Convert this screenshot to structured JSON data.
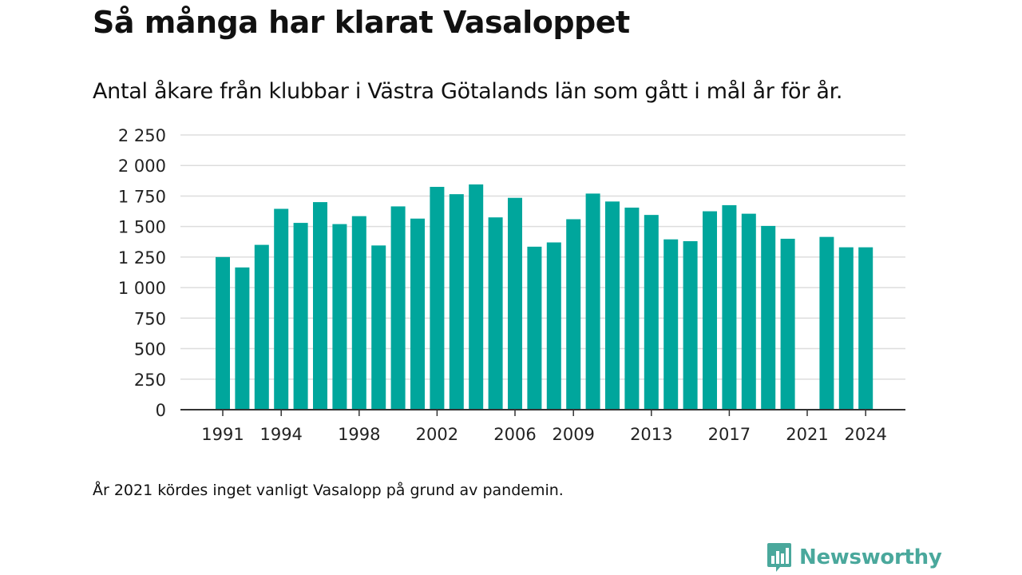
{
  "title": "Så många har klarat Vasaloppet",
  "subtitle": "Antal åkare från klubbar i Västra Götalands län som gått i mål år för år.",
  "note": "År 2021 kördes inget vanligt Vasalopp på grund av pandemin.",
  "brand": {
    "name": "Newsworthy",
    "icon": "newsworthy-logo-icon",
    "color": "#4aa89c"
  },
  "chart_data": {
    "type": "bar",
    "bar_color": "#00a69c",
    "grid": true,
    "ylim": [
      0,
      2250
    ],
    "y_ticks": [
      0,
      250,
      500,
      750,
      1000,
      1250,
      1500,
      1750,
      2000,
      2250
    ],
    "y_tick_labels": [
      "0",
      "250",
      "500",
      "750",
      "1 000",
      "1 250",
      "1 500",
      "1 750",
      "2 000",
      "2 250"
    ],
    "x_tick_labels": [
      "1991",
      "1994",
      "1998",
      "2002",
      "2006",
      "2009",
      "2013",
      "2017",
      "2021",
      "2024"
    ],
    "categories": [
      "1991",
      "1992",
      "1993",
      "1994",
      "1995",
      "1996",
      "1997",
      "1998",
      "1999",
      "2000",
      "2001",
      "2002",
      "2003",
      "2004",
      "2005",
      "2006",
      "2007",
      "2008",
      "2009",
      "2010",
      "2011",
      "2012",
      "2013",
      "2014",
      "2015",
      "2016",
      "2017",
      "2018",
      "2019",
      "2020",
      "2021",
      "2022",
      "2023",
      "2024"
    ],
    "values": [
      1250,
      1165,
      1350,
      1645,
      1530,
      1700,
      1520,
      1585,
      1345,
      1665,
      1565,
      1825,
      1765,
      1845,
      1575,
      1735,
      1335,
      1370,
      1560,
      1770,
      1705,
      1655,
      1595,
      1395,
      1380,
      1625,
      1675,
      1605,
      1505,
      1400,
      null,
      1415,
      1330,
      1330
    ]
  }
}
